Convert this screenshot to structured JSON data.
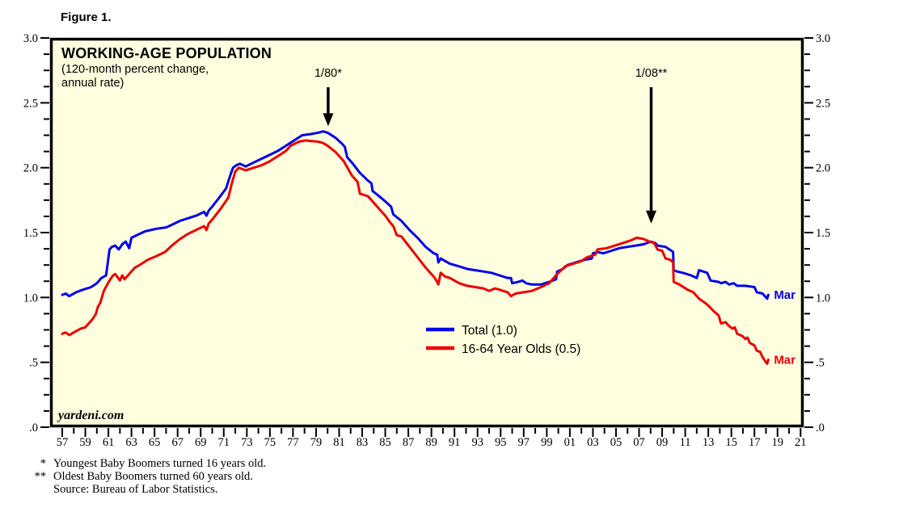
{
  "figure_label": "Figure 1.",
  "header": {
    "title": "WORKING-AGE POPULATION",
    "subtitle_line1": "(120-month percent change,",
    "subtitle_line2": "annual rate)"
  },
  "watermark": "yardeni.com",
  "colors": {
    "plot_background": "#ffffe0",
    "axis": "#000000",
    "total_line": "#0000ee",
    "aged_line": "#ee0000"
  },
  "footnotes": [
    {
      "marker": "*",
      "text": "Youngest Baby Boomers turned 16 years old."
    },
    {
      "marker": "**",
      "text": "Oldest Baby Boomers turned 60 years old."
    },
    {
      "marker": "",
      "text": "Source: Bureau of Labor Statistics."
    }
  ],
  "chart_data": {
    "type": "line",
    "title": "WORKING-AGE POPULATION",
    "subtitle": "(120-month percent change, annual rate)",
    "grid": false,
    "legend_position": "center-bottom",
    "x_axis": {
      "range": [
        1956,
        2021.5
      ],
      "minor_tick_every_year": true,
      "labels": [
        [
          1957,
          "57"
        ],
        [
          1959,
          "59"
        ],
        [
          1961,
          "61"
        ],
        [
          1963,
          "63"
        ],
        [
          1965,
          "65"
        ],
        [
          1967,
          "67"
        ],
        [
          1969,
          "69"
        ],
        [
          1971,
          "71"
        ],
        [
          1973,
          "73"
        ],
        [
          1975,
          "75"
        ],
        [
          1977,
          "77"
        ],
        [
          1979,
          "79"
        ],
        [
          1981,
          "81"
        ],
        [
          1983,
          "83"
        ],
        [
          1985,
          "85"
        ],
        [
          1987,
          "87"
        ],
        [
          1989,
          "89"
        ],
        [
          1991,
          "91"
        ],
        [
          1993,
          "93"
        ],
        [
          1995,
          "95"
        ],
        [
          1997,
          "97"
        ],
        [
          1999,
          "99"
        ],
        [
          2001,
          "01"
        ],
        [
          2003,
          "03"
        ],
        [
          2005,
          "05"
        ],
        [
          2007,
          "07"
        ],
        [
          2009,
          "09"
        ],
        [
          2011,
          "11"
        ],
        [
          2013,
          "13"
        ],
        [
          2015,
          "15"
        ],
        [
          2017,
          "17"
        ],
        [
          2019,
          "19"
        ],
        [
          2021,
          "21"
        ]
      ]
    },
    "y_axis": {
      "range": [
        0,
        3
      ],
      "minor_step": 0.125,
      "labels": [
        [
          0,
          ".0"
        ],
        [
          0.5,
          ".5"
        ],
        [
          1,
          "1.0"
        ],
        [
          1.5,
          "1.5"
        ],
        [
          2,
          "2.0"
        ],
        [
          2.5,
          "2.5"
        ],
        [
          3,
          "3.0"
        ]
      ]
    },
    "annotations": [
      {
        "label": "1/80*",
        "year": 1980.05,
        "text_value": 2.7,
        "arrow_from_value": 2.62,
        "arrow_tip_value": 2.32
      },
      {
        "label": "1/08**",
        "year": 2008.05,
        "text_value": 2.7,
        "arrow_from_value": 2.62,
        "arrow_tip_value": 1.57
      }
    ],
    "series": [
      {
        "name": "Total (1.0)",
        "color": "#0000ee",
        "end_label": "Mar",
        "points": [
          [
            1957.0,
            1.02
          ],
          [
            1957.3,
            1.03
          ],
          [
            1957.6,
            1.01
          ],
          [
            1958.2,
            1.04
          ],
          [
            1958.8,
            1.06
          ],
          [
            1959.5,
            1.08
          ],
          [
            1960.0,
            1.11
          ],
          [
            1960.4,
            1.15
          ],
          [
            1960.8,
            1.17
          ],
          [
            1961.1,
            1.37
          ],
          [
            1961.3,
            1.39
          ],
          [
            1961.6,
            1.4
          ],
          [
            1961.9,
            1.37
          ],
          [
            1962.2,
            1.41
          ],
          [
            1962.5,
            1.43
          ],
          [
            1962.8,
            1.38
          ],
          [
            1963.0,
            1.46
          ],
          [
            1963.7,
            1.49
          ],
          [
            1964.2,
            1.51
          ],
          [
            1965.2,
            1.53
          ],
          [
            1966.0,
            1.54
          ],
          [
            1966.5,
            1.56
          ],
          [
            1967.2,
            1.59
          ],
          [
            1967.9,
            1.61
          ],
          [
            1968.6,
            1.63
          ],
          [
            1969.3,
            1.66
          ],
          [
            1969.5,
            1.63
          ],
          [
            1969.7,
            1.67
          ],
          [
            1970.0,
            1.7
          ],
          [
            1970.7,
            1.78
          ],
          [
            1971.2,
            1.84
          ],
          [
            1971.6,
            1.95
          ],
          [
            1971.8,
            2.0
          ],
          [
            1972.1,
            2.02
          ],
          [
            1972.4,
            2.03
          ],
          [
            1972.9,
            2.01
          ],
          [
            1973.6,
            2.04
          ],
          [
            1974.3,
            2.07
          ],
          [
            1975.0,
            2.1
          ],
          [
            1975.7,
            2.13
          ],
          [
            1976.4,
            2.17
          ],
          [
            1977.1,
            2.21
          ],
          [
            1977.8,
            2.25
          ],
          [
            1978.6,
            2.26
          ],
          [
            1979.2,
            2.27
          ],
          [
            1979.6,
            2.28
          ],
          [
            1980.0,
            2.27
          ],
          [
            1980.7,
            2.23
          ],
          [
            1981.3,
            2.18
          ],
          [
            1981.5,
            2.16
          ],
          [
            1981.7,
            2.08
          ],
          [
            1982.1,
            2.04
          ],
          [
            1982.8,
            1.96
          ],
          [
            1983.5,
            1.9
          ],
          [
            1983.8,
            1.88
          ],
          [
            1983.9,
            1.82
          ],
          [
            1984.2,
            1.8
          ],
          [
            1985.0,
            1.74
          ],
          [
            1985.5,
            1.7
          ],
          [
            1985.7,
            1.64
          ],
          [
            1986.4,
            1.59
          ],
          [
            1987.1,
            1.52
          ],
          [
            1987.8,
            1.46
          ],
          [
            1988.5,
            1.39
          ],
          [
            1989.2,
            1.34
          ],
          [
            1989.5,
            1.33
          ],
          [
            1989.6,
            1.27
          ],
          [
            1989.8,
            1.3
          ],
          [
            1990.2,
            1.28
          ],
          [
            1990.6,
            1.26
          ],
          [
            1991.4,
            1.24
          ],
          [
            1992.1,
            1.22
          ],
          [
            1992.8,
            1.21
          ],
          [
            1993.5,
            1.2
          ],
          [
            1994.2,
            1.19
          ],
          [
            1994.9,
            1.17
          ],
          [
            1995.6,
            1.15
          ],
          [
            1995.9,
            1.15
          ],
          [
            1996.0,
            1.11
          ],
          [
            1996.5,
            1.12
          ],
          [
            1996.9,
            1.13
          ],
          [
            1997.2,
            1.11
          ],
          [
            1997.7,
            1.1
          ],
          [
            1998.5,
            1.1
          ],
          [
            1999.2,
            1.12
          ],
          [
            1999.8,
            1.14
          ],
          [
            1999.9,
            1.2
          ],
          [
            2000.4,
            1.22
          ],
          [
            2000.8,
            1.25
          ],
          [
            2001.5,
            1.27
          ],
          [
            2002.3,
            1.29
          ],
          [
            2002.9,
            1.3
          ],
          [
            2003.0,
            1.34
          ],
          [
            2003.4,
            1.35
          ],
          [
            2003.9,
            1.34
          ],
          [
            2004.6,
            1.36
          ],
          [
            2005.3,
            1.38
          ],
          [
            2006.0,
            1.39
          ],
          [
            2006.7,
            1.4
          ],
          [
            2007.4,
            1.41
          ],
          [
            2008.0,
            1.43
          ],
          [
            2008.4,
            1.42
          ],
          [
            2008.6,
            1.4
          ],
          [
            2009.3,
            1.39
          ],
          [
            2009.8,
            1.36
          ],
          [
            2009.95,
            1.35
          ],
          [
            2010.0,
            1.21
          ],
          [
            2010.3,
            1.2
          ],
          [
            2010.8,
            1.19
          ],
          [
            2011.5,
            1.17
          ],
          [
            2012.0,
            1.15
          ],
          [
            2012.2,
            1.21
          ],
          [
            2012.9,
            1.19
          ],
          [
            2013.2,
            1.13
          ],
          [
            2013.9,
            1.12
          ],
          [
            2014.1,
            1.11
          ],
          [
            2014.5,
            1.12
          ],
          [
            2014.8,
            1.1
          ],
          [
            2015.2,
            1.11
          ],
          [
            2015.5,
            1.09
          ],
          [
            2016.2,
            1.09
          ],
          [
            2017.0,
            1.08
          ],
          [
            2017.2,
            1.04
          ],
          [
            2017.7,
            1.03
          ],
          [
            2018.0,
            1.0
          ],
          [
            2018.1,
            0.99
          ],
          [
            2018.2,
            1.02
          ]
        ]
      },
      {
        "name": "16-64 Year Olds (0.5)",
        "color": "#ee0000",
        "end_label": "Mar",
        "points": [
          [
            1957.0,
            0.72
          ],
          [
            1957.3,
            0.73
          ],
          [
            1957.6,
            0.71
          ],
          [
            1958.2,
            0.74
          ],
          [
            1958.6,
            0.76
          ],
          [
            1959.0,
            0.77
          ],
          [
            1959.3,
            0.8
          ],
          [
            1959.6,
            0.83
          ],
          [
            1959.9,
            0.87
          ],
          [
            1960.1,
            0.93
          ],
          [
            1960.3,
            0.96
          ],
          [
            1960.6,
            1.05
          ],
          [
            1960.9,
            1.1
          ],
          [
            1961.1,
            1.13
          ],
          [
            1961.4,
            1.17
          ],
          [
            1961.6,
            1.18
          ],
          [
            1962.0,
            1.13
          ],
          [
            1962.2,
            1.17
          ],
          [
            1962.4,
            1.14
          ],
          [
            1962.9,
            1.19
          ],
          [
            1963.3,
            1.23
          ],
          [
            1963.7,
            1.25
          ],
          [
            1964.4,
            1.29
          ],
          [
            1965.2,
            1.32
          ],
          [
            1965.9,
            1.35
          ],
          [
            1966.5,
            1.4
          ],
          [
            1967.2,
            1.45
          ],
          [
            1967.9,
            1.49
          ],
          [
            1968.6,
            1.52
          ],
          [
            1969.3,
            1.55
          ],
          [
            1969.5,
            1.52
          ],
          [
            1969.7,
            1.57
          ],
          [
            1970.0,
            1.6
          ],
          [
            1970.7,
            1.68
          ],
          [
            1971.4,
            1.77
          ],
          [
            1971.7,
            1.88
          ],
          [
            1972.0,
            1.97
          ],
          [
            1972.3,
            2.0
          ],
          [
            1972.9,
            1.98
          ],
          [
            1973.6,
            2.0
          ],
          [
            1974.3,
            2.02
          ],
          [
            1975.0,
            2.05
          ],
          [
            1975.7,
            2.09
          ],
          [
            1976.4,
            2.13
          ],
          [
            1976.8,
            2.17
          ],
          [
            1977.5,
            2.2
          ],
          [
            1978.1,
            2.21
          ],
          [
            1979.2,
            2.2
          ],
          [
            1979.6,
            2.19
          ],
          [
            1980.0,
            2.17
          ],
          [
            1980.7,
            2.12
          ],
          [
            1981.4,
            2.05
          ],
          [
            1982.1,
            1.94
          ],
          [
            1982.6,
            1.89
          ],
          [
            1982.8,
            1.8
          ],
          [
            1983.5,
            1.78
          ],
          [
            1984.2,
            1.71
          ],
          [
            1985.0,
            1.63
          ],
          [
            1985.4,
            1.58
          ],
          [
            1985.7,
            1.55
          ],
          [
            1986.0,
            1.48
          ],
          [
            1986.4,
            1.47
          ],
          [
            1987.1,
            1.39
          ],
          [
            1987.8,
            1.31
          ],
          [
            1988.5,
            1.23
          ],
          [
            1989.2,
            1.16
          ],
          [
            1989.5,
            1.12
          ],
          [
            1989.6,
            1.1
          ],
          [
            1989.8,
            1.19
          ],
          [
            1990.2,
            1.16
          ],
          [
            1990.6,
            1.15
          ],
          [
            1991.4,
            1.11
          ],
          [
            1992.1,
            1.09
          ],
          [
            1992.8,
            1.08
          ],
          [
            1993.5,
            1.07
          ],
          [
            1994.0,
            1.05
          ],
          [
            1994.5,
            1.07
          ],
          [
            1994.9,
            1.06
          ],
          [
            1995.6,
            1.04
          ],
          [
            1995.9,
            1.01
          ],
          [
            1996.3,
            1.03
          ],
          [
            1997.0,
            1.04
          ],
          [
            1997.7,
            1.05
          ],
          [
            1998.5,
            1.08
          ],
          [
            1999.2,
            1.11
          ],
          [
            1999.9,
            1.18
          ],
          [
            2000.6,
            1.24
          ],
          [
            2001.3,
            1.26
          ],
          [
            2002.0,
            1.28
          ],
          [
            2002.5,
            1.31
          ],
          [
            2003.2,
            1.33
          ],
          [
            2003.4,
            1.37
          ],
          [
            2004.2,
            1.38
          ],
          [
            2004.9,
            1.4
          ],
          [
            2005.6,
            1.42
          ],
          [
            2006.3,
            1.44
          ],
          [
            2006.8,
            1.46
          ],
          [
            2007.4,
            1.45
          ],
          [
            2007.9,
            1.43
          ],
          [
            2008.3,
            1.42
          ],
          [
            2008.6,
            1.37
          ],
          [
            2009.0,
            1.36
          ],
          [
            2009.3,
            1.3
          ],
          [
            2009.7,
            1.29
          ],
          [
            2009.95,
            1.27
          ],
          [
            2010.0,
            1.12
          ],
          [
            2010.5,
            1.1
          ],
          [
            2011.2,
            1.06
          ],
          [
            2011.7,
            1.04
          ],
          [
            2012.0,
            1.01
          ],
          [
            2012.2,
            0.99
          ],
          [
            2012.7,
            0.96
          ],
          [
            2013.1,
            0.93
          ],
          [
            2013.4,
            0.9
          ],
          [
            2013.9,
            0.86
          ],
          [
            2014.1,
            0.8
          ],
          [
            2014.5,
            0.81
          ],
          [
            2014.8,
            0.78
          ],
          [
            2015.1,
            0.76
          ],
          [
            2015.3,
            0.77
          ],
          [
            2015.5,
            0.72
          ],
          [
            2016.0,
            0.7
          ],
          [
            2016.2,
            0.68
          ],
          [
            2016.4,
            0.69
          ],
          [
            2016.6,
            0.65
          ],
          [
            2017.0,
            0.63
          ],
          [
            2017.2,
            0.59
          ],
          [
            2017.5,
            0.58
          ],
          [
            2017.7,
            0.54
          ],
          [
            2018.0,
            0.5
          ],
          [
            2018.1,
            0.49
          ],
          [
            2018.2,
            0.52
          ]
        ]
      }
    ]
  }
}
